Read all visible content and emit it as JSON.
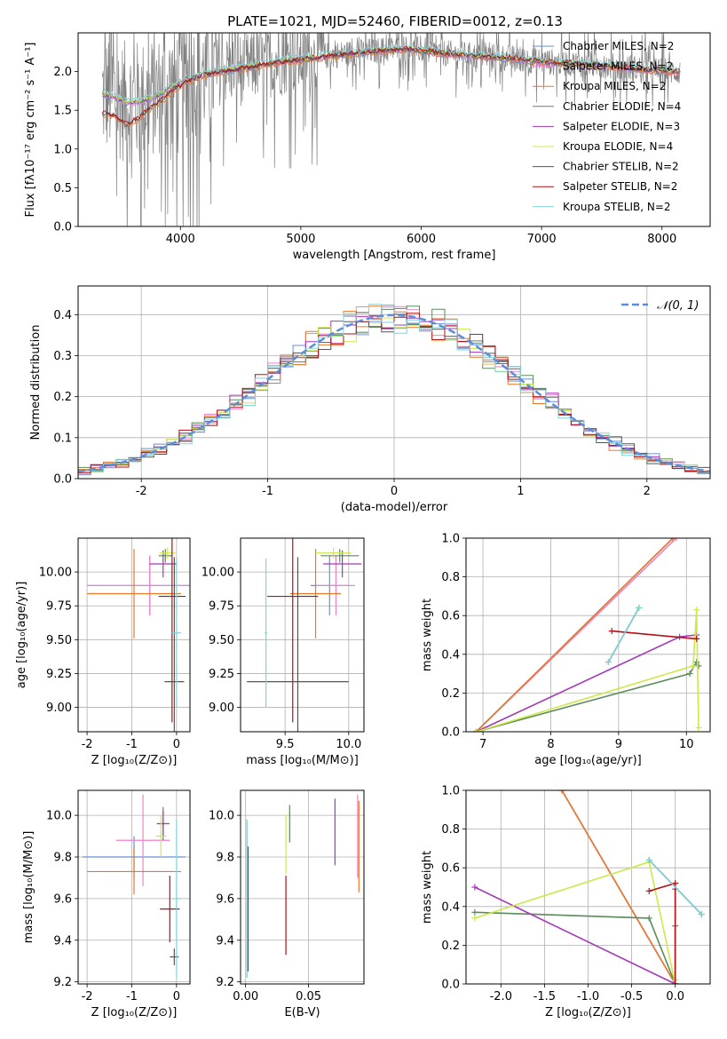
{
  "figure": {
    "title": "PLATE=1021, MJD=52460, FIBERID=0012, z=0.13"
  },
  "colors": {
    "chabrier_miles": "#6a8fd6",
    "salpeter_miles": "#ee82c8",
    "kroupa_miles": "#e8792a",
    "chabrier_elodie": "#5b8a5b",
    "salpeter_elodie": "#a339b8",
    "kroupa_elodie": "#cde84a",
    "chabrier_stelib": "#555555",
    "salpeter_stelib": "#b30f14",
    "kroupa_stelib": "#7fd4d8",
    "data": "#808080",
    "gaussian": "#5b8ddb",
    "grid": "#b0b0b0"
  },
  "chart_data": [
    {
      "id": "spectrum",
      "type": "line",
      "title": "PLATE=1021, MJD=52460, FIBERID=0012, z=0.13",
      "xlabel": "wavelength [Angstrom, rest frame]",
      "ylabel": "Flux [fλ10⁻¹⁷ erg cm⁻² s⁻¹ A⁻¹]",
      "xlim": [
        3150,
        8400
      ],
      "ylim": [
        0,
        2.5
      ],
      "xticks": [
        4000,
        5000,
        6000,
        7000,
        8000
      ],
      "yticks": [
        0.0,
        0.5,
        1.0,
        1.5,
        2.0
      ],
      "grid": false,
      "legend_position": "top-right",
      "legend": [
        "Chabrier MILES, N_SSP=2",
        "Salpeter MILES, N_SSP=2",
        "Kroupa MILES, N_SSP=2",
        "Chabrier ELODIE, N_SSP=4",
        "Salpeter ELODIE, N_SSP=3",
        "Kroupa ELODIE, N_SSP=4",
        "Chabrier STELIB, N_SSP=2",
        "Salpeter STELIB, N_SSP=2",
        "Kroupa STELIB, N_SSP=2"
      ],
      "legend_keys": [
        "chabrier_miles",
        "salpeter_miles",
        "kroupa_miles",
        "chabrier_elodie",
        "salpeter_elodie",
        "kroupa_elodie",
        "chabrier_stelib",
        "salpeter_stelib",
        "kroupa_stelib"
      ],
      "model_wave": [
        3350,
        3450,
        3550,
        3650,
        3750,
        3850,
        3950,
        4050,
        4150,
        4300,
        4500,
        4700,
        4900,
        5100,
        5300,
        5500,
        5700,
        5900,
        6100,
        6300,
        6500,
        6700,
        6900,
        7100,
        7300,
        7500,
        7700,
        7900,
        8100
      ],
      "model_flux_blue": [
        1.72,
        1.68,
        1.6,
        1.62,
        1.66,
        1.72,
        1.82,
        1.9,
        1.95,
        2.0,
        2.05,
        2.1,
        2.15,
        2.18,
        2.22,
        2.25,
        2.28,
        2.3,
        2.25,
        2.22,
        2.2,
        2.18,
        2.15,
        2.12,
        2.1,
        2.08,
        2.05,
        2.02,
        2.0
      ],
      "model_flux_red": [
        1.45,
        1.42,
        1.3,
        1.38,
        1.52,
        1.62,
        1.75,
        1.85,
        1.92,
        1.98,
        2.02,
        2.08,
        2.12,
        2.16,
        2.2,
        2.23,
        2.26,
        2.28,
        2.24,
        2.21,
        2.19,
        2.17,
        2.14,
        2.11,
        2.09,
        2.07,
        2.04,
        2.01,
        1.99
      ]
    },
    {
      "id": "residuals",
      "type": "line",
      "xlabel": "(data-model)/error",
      "ylabel": "Normed distribution",
      "xlim": [
        -2.5,
        2.5
      ],
      "ylim": [
        0,
        0.47
      ],
      "xticks": [
        -2,
        -1,
        0,
        1,
        2
      ],
      "yticks": [
        0.0,
        0.1,
        0.2,
        0.3,
        0.4
      ],
      "grid": true,
      "legend_position": "top-right",
      "legend": [
        "𝒩(0, 1)"
      ],
      "series": [
        {
          "name": "N(0,1)",
          "mu": 0,
          "sigma": 1
        }
      ]
    },
    {
      "id": "age_vs_Z",
      "type": "scatter",
      "xlabel": "Z [log₁₀(Z/Z⊙)]",
      "ylabel": "age  [log₁₀(age/yr)]",
      "xlim": [
        -2.2,
        0.3
      ],
      "ylim": [
        8.82,
        10.25
      ],
      "xticks": [
        -2,
        -1,
        0
      ],
      "yticks": [
        9.0,
        9.25,
        9.5,
        9.75,
        10.0
      ],
      "grid": true,
      "points": [
        {
          "key": "chabrier_miles",
          "x": -0.6,
          "xerr": 1.4,
          "y": 9.9,
          "yerr": 0.22
        },
        {
          "key": "salpeter_miles",
          "x": -0.6,
          "xerr": 1.4,
          "y": 9.9,
          "yerr": 0.22
        },
        {
          "key": "kroupa_miles",
          "x": -0.95,
          "xerr": 1.05,
          "y": 9.84,
          "yerr": 0.33
        },
        {
          "key": "chabrier_elodie",
          "x": -0.25,
          "xerr": 0.15,
          "y": 10.12,
          "yerr": 0.05
        },
        {
          "key": "salpeter_elodie",
          "x": -0.3,
          "xerr": 0.3,
          "y": 10.06,
          "yerr": 0.1
        },
        {
          "key": "kroupa_elodie",
          "x": -0.2,
          "xerr": 0.18,
          "y": 10.14,
          "yerr": 0.04
        },
        {
          "key": "chabrier_stelib",
          "x": -0.05,
          "xerr": 0.22,
          "y": 9.19,
          "yerr": 0.92
        },
        {
          "key": "salpeter_stelib",
          "x": -0.1,
          "xerr": 0.3,
          "y": 9.82,
          "yerr": 0.93
        },
        {
          "key": "kroupa_stelib",
          "x": 0.0,
          "xerr": 0.1,
          "y": 9.55,
          "yerr": 0.55
        }
      ]
    },
    {
      "id": "age_vs_mass",
      "type": "scatter",
      "xlabel": "mass [log₁₀(M/M⊙)]",
      "ylabel": "",
      "xlim": [
        9.15,
        10.12
      ],
      "ylim": [
        8.82,
        10.25
      ],
      "xticks": [
        9.5,
        10.0
      ],
      "yticks": [
        9.0,
        9.25,
        9.5,
        9.75,
        10.0
      ],
      "grid": true,
      "points": [
        {
          "key": "chabrier_miles",
          "x": 9.85,
          "xerr": 0.15,
          "y": 9.9,
          "yerr": 0.22
        },
        {
          "key": "salpeter_miles",
          "x": 9.9,
          "xerr": 0.15,
          "y": 9.9,
          "yerr": 0.22
        },
        {
          "key": "kroupa_miles",
          "x": 9.74,
          "xerr": 0.2,
          "y": 9.84,
          "yerr": 0.33
        },
        {
          "key": "chabrier_elodie",
          "x": 9.93,
          "xerr": 0.15,
          "y": 10.12,
          "yerr": 0.05
        },
        {
          "key": "salpeter_elodie",
          "x": 9.95,
          "xerr": 0.15,
          "y": 10.06,
          "yerr": 0.1
        },
        {
          "key": "kroupa_elodie",
          "x": 9.88,
          "xerr": 0.14,
          "y": 10.14,
          "yerr": 0.04
        },
        {
          "key": "chabrier_stelib",
          "x": 9.6,
          "xerr": 0.4,
          "y": 9.19,
          "yerr": 0.92
        },
        {
          "key": "salpeter_stelib",
          "x": 9.56,
          "xerr": 0.2,
          "y": 9.82,
          "yerr": 0.93
        },
        {
          "key": "kroupa_stelib",
          "x": 9.35,
          "xerr": 0.01,
          "y": 9.55,
          "yerr": 0.55
        }
      ]
    },
    {
      "id": "weight_vs_age",
      "type": "line",
      "xlabel": "age  [log₁₀(age/yr)]",
      "ylabel": "mass weight",
      "xlim": [
        6.75,
        10.35
      ],
      "ylim": [
        0,
        1.0
      ],
      "xticks": [
        7,
        8,
        9,
        10
      ],
      "yticks": [
        0.0,
        0.2,
        0.4,
        0.6,
        0.8,
        1.0
      ],
      "grid": true,
      "series": [
        {
          "key": "chabrier_miles",
          "x": [
            6.9,
            9.8
          ],
          "y": [
            0.0,
            1.0
          ]
        },
        {
          "key": "salpeter_miles",
          "x": [
            6.9,
            9.85
          ],
          "y": [
            0.0,
            1.0
          ]
        },
        {
          "key": "kroupa_miles",
          "x": [
            6.9,
            9.8
          ],
          "y": [
            0.0,
            1.0
          ]
        },
        {
          "key": "chabrier_elodie",
          "x": [
            6.9,
            10.05,
            10.15,
            10.18
          ],
          "y": [
            0.0,
            0.3,
            0.36,
            0.34
          ]
        },
        {
          "key": "salpeter_elodie",
          "x": [
            6.9,
            9.9,
            10.15
          ],
          "y": [
            0.0,
            0.49,
            0.5
          ]
        },
        {
          "key": "kroupa_elodie",
          "x": [
            6.9,
            10.1,
            10.15,
            10.18
          ],
          "y": [
            0.0,
            0.34,
            0.63,
            0.02
          ]
        },
        {
          "key": "chabrier_stelib",
          "x": [
            8.85,
            9.3
          ],
          "y": [
            0.36,
            0.64
          ]
        },
        {
          "key": "salpeter_stelib",
          "x": [
            8.9,
            10.15
          ],
          "y": [
            0.52,
            0.48
          ]
        },
        {
          "key": "kroupa_stelib",
          "x": [
            8.85,
            9.3
          ],
          "y": [
            0.36,
            0.64
          ]
        }
      ]
    },
    {
      "id": "mass_vs_Z",
      "type": "scatter",
      "xlabel": "Z [log₁₀(Z/Z⊙)]",
      "ylabel": "mass [log₁₀(M/M⊙)]",
      "xlim": [
        -2.2,
        0.3
      ],
      "ylim": [
        9.19,
        10.12
      ],
      "xticks": [
        -2,
        -1,
        0
      ],
      "yticks": [
        9.2,
        9.4,
        9.6,
        9.8,
        10.0
      ],
      "grid": true,
      "points": [
        {
          "key": "chabrier_miles",
          "x": -0.95,
          "xerr": 1.15,
          "y": 9.8,
          "yerr": 0.1
        },
        {
          "key": "salpeter_miles",
          "x": -0.75,
          "xerr": 0.6,
          "y": 9.88,
          "yerr": 0.22
        },
        {
          "key": "kroupa_miles",
          "x": -0.95,
          "xerr": 1.05,
          "y": 9.73,
          "yerr": 0.11
        },
        {
          "key": "chabrier_elodie",
          "x": -0.3,
          "xerr": 0.14,
          "y": 9.96,
          "yerr": 0.08
        },
        {
          "key": "salpeter_elodie",
          "x": -0.3,
          "xerr": 0.14,
          "y": 9.96,
          "yerr": 0.06
        },
        {
          "key": "kroupa_elodie",
          "x": -0.35,
          "xerr": 0.12,
          "y": 9.9,
          "yerr": 0.1
        },
        {
          "key": "chabrier_stelib",
          "x": -0.05,
          "xerr": 0.1,
          "y": 9.32,
          "yerr": 0.04
        },
        {
          "key": "salpeter_stelib",
          "x": -0.15,
          "xerr": 0.22,
          "y": 9.55,
          "yerr": 0.16
        },
        {
          "key": "kroupa_stelib",
          "x": 0.0,
          "xerr": 0.1,
          "y": 9.6,
          "yerr": 0.38
        }
      ]
    },
    {
      "id": "mass_vs_ebv",
      "type": "scatter",
      "xlabel": "E(B-V)",
      "ylabel": "",
      "xlim": [
        -0.004,
        0.094
      ],
      "ylim": [
        9.19,
        10.12
      ],
      "xticks": [
        0.0,
        0.05
      ],
      "yticks": [
        9.2,
        9.4,
        9.6,
        9.8,
        10.0
      ],
      "grid": true,
      "points": [
        {
          "key": "chabrier_miles",
          "x": 0.001,
          "xerr": 0,
          "y": 9.6,
          "yerr": 0.38
        },
        {
          "key": "kroupa_miles",
          "x": 0.09,
          "xerr": 0,
          "y": 9.85,
          "yerr": 0.22
        },
        {
          "key": "salpeter_miles",
          "x": 0.089,
          "xerr": 0,
          "y": 9.9,
          "yerr": 0.2
        },
        {
          "key": "chabrier_elodie",
          "x": 0.035,
          "xerr": 0,
          "y": 9.96,
          "yerr": 0.09
        },
        {
          "key": "kroupa_elodie",
          "x": 0.032,
          "xerr": 0,
          "y": 9.86,
          "yerr": 0.14
        },
        {
          "key": "salpeter_elodie",
          "x": 0.071,
          "xerr": 0,
          "y": 9.92,
          "yerr": 0.16
        },
        {
          "key": "salpeter_stelib",
          "x": 0.032,
          "xerr": 0,
          "y": 9.52,
          "yerr": 0.19
        },
        {
          "key": "kroupa_stelib",
          "x": 0.001,
          "xerr": 0,
          "y": 9.6,
          "yerr": 0.38
        },
        {
          "key": "chabrier_stelib",
          "x": 0.002,
          "xerr": 0,
          "y": 9.55,
          "yerr": 0.3
        }
      ]
    },
    {
      "id": "weight_vs_Z",
      "type": "line",
      "xlabel": "Z [log₁₀(Z/Z⊙)]",
      "ylabel": "mass weight",
      "xlim": [
        -2.4,
        0.4
      ],
      "ylim": [
        0,
        1.0
      ],
      "xticks": [
        -2.0,
        -1.5,
        -1.0,
        -0.5,
        0.0
      ],
      "yticks": [
        0.0,
        0.2,
        0.4,
        0.6,
        0.8,
        1.0
      ],
      "grid": true,
      "series": [
        {
          "key": "chabrier_miles",
          "x": [
            -1.3,
            0.0
          ],
          "y": [
            1.0,
            0.0
          ]
        },
        {
          "key": "salpeter_miles",
          "x": [
            -1.3,
            0.0
          ],
          "y": [
            1.0,
            0.0
          ]
        },
        {
          "key": "kroupa_miles",
          "x": [
            -1.3,
            0.0
          ],
          "y": [
            1.0,
            0.0
          ]
        },
        {
          "key": "chabrier_elodie",
          "x": [
            -2.3,
            -0.3,
            0.0,
            0.0
          ],
          "y": [
            0.37,
            0.34,
            0.0,
            0.3
          ]
        },
        {
          "key": "salpeter_elodie",
          "x": [
            -2.3,
            0.0,
            0.0
          ],
          "y": [
            0.5,
            0.0,
            0.49
          ]
        },
        {
          "key": "kroupa_elodie",
          "x": [
            -2.3,
            -0.3,
            0.0,
            0.0
          ],
          "y": [
            0.34,
            0.63,
            0.0,
            0.02
          ]
        },
        {
          "key": "chabrier_stelib",
          "x": [
            -0.3,
            0.3
          ],
          "y": [
            0.64,
            0.36
          ]
        },
        {
          "key": "salpeter_stelib",
          "x": [
            -0.3,
            0.0,
            0.0
          ],
          "y": [
            0.48,
            0.52,
            0.0
          ]
        },
        {
          "key": "kroupa_stelib",
          "x": [
            -0.3,
            0.3
          ],
          "y": [
            0.64,
            0.36
          ]
        }
      ]
    }
  ]
}
